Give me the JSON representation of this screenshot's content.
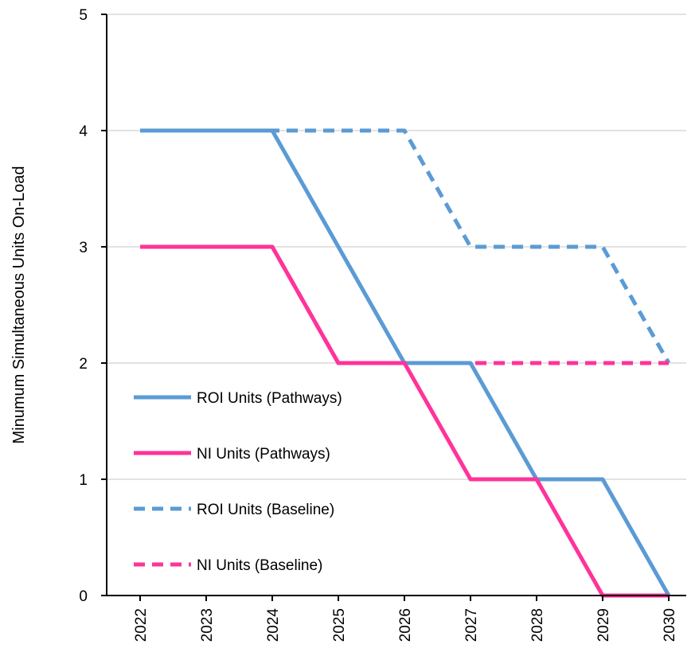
{
  "chart_data": {
    "type": "line",
    "title": "",
    "xlabel": "",
    "ylabel": "Minumum Simultaneous Units On-Load",
    "categories": [
      "2022",
      "2023",
      "2024",
      "2025",
      "2026",
      "2027",
      "2028",
      "2029",
      "2030"
    ],
    "ylim": [
      0,
      5
    ],
    "yticks": [
      "0",
      "1",
      "2",
      "3",
      "4",
      "5"
    ],
    "grid": true,
    "legend_position": "left",
    "series": [
      {
        "name": "ROI Units (Pathways)",
        "values": [
          4,
          4,
          4,
          3,
          2,
          2,
          1,
          1,
          0
        ],
        "color": "#5b9bd5",
        "dash": false
      },
      {
        "name": "NI Units (Pathways)",
        "values": [
          3,
          3,
          3,
          2,
          2,
          1,
          1,
          0,
          0
        ],
        "color": "#ff3399",
        "dash": false
      },
      {
        "name": "ROI Units (Baseline)",
        "values": [
          4,
          4,
          4,
          4,
          4,
          3,
          3,
          3,
          2
        ],
        "color": "#5b9bd5",
        "dash": true
      },
      {
        "name": "NI Units (Baseline)",
        "values": [
          3,
          3,
          3,
          2,
          2,
          2,
          2,
          2,
          2
        ],
        "color": "#ff3399",
        "dash": true
      }
    ]
  }
}
